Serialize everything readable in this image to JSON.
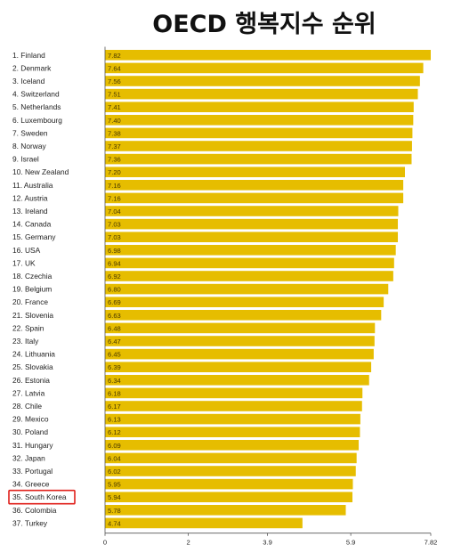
{
  "chart_data": {
    "type": "bar",
    "orientation": "horizontal",
    "title": "OECD 행복지수 순위",
    "categories": [
      "1. Finland",
      "2. Denmark",
      "3. Iceland",
      "4. Switzerland",
      "5. Netherlands",
      "6. Luxembourg",
      "7. Sweden",
      "8. Norway",
      "9. Israel",
      "10. New Zealand",
      "11. Australia",
      "12. Austria",
      "13. Ireland",
      "14. Canada",
      "15. Germany",
      "16. USA",
      "17. UK",
      "18. Czechia",
      "19. Belgium",
      "20. France",
      "21. Slovenia",
      "22. Spain",
      "23. Italy",
      "24. Lithuania",
      "25. Slovakia",
      "26. Estonia",
      "27. Latvia",
      "28. Chile",
      "29. Mexico",
      "30. Poland",
      "31. Hungary",
      "32. Japan",
      "33. Portugal",
      "34. Greece",
      "35. South Korea",
      "36. Colombia",
      "37. Turkey"
    ],
    "values": [
      7.82,
      7.64,
      7.56,
      7.51,
      7.41,
      7.4,
      7.38,
      7.37,
      7.36,
      7.2,
      7.16,
      7.16,
      7.04,
      7.03,
      7.03,
      6.98,
      6.94,
      6.92,
      6.8,
      6.69,
      6.63,
      6.48,
      6.47,
      6.45,
      6.39,
      6.34,
      6.18,
      6.17,
      6.13,
      6.12,
      6.09,
      6.04,
      6.02,
      5.95,
      5.94,
      5.78,
      4.74
    ],
    "value_labels": [
      "7.82",
      "7.64",
      "7.56",
      "7.51",
      "7.41",
      "7.40",
      "7.38",
      "7.37",
      "7.36",
      "7.20",
      "7.16",
      "7.16",
      "7.04",
      "7.03",
      "7.03",
      "6.98",
      "6.94",
      "6.92",
      "6.80",
      "6.69",
      "6.63",
      "6.48",
      "6.47",
      "6.45",
      "6.39",
      "6.34",
      "6.18",
      "6.17",
      "6.13",
      "6.12",
      "6.09",
      "6.04",
      "6.02",
      "5.95",
      "5.94",
      "5.78",
      "4.74"
    ],
    "x_ticks": [
      {
        "value": 0,
        "label": "0"
      },
      {
        "value": 2,
        "label": "2"
      },
      {
        "value": 3.9,
        "label": "3.9"
      },
      {
        "value": 5.9,
        "label": "5.9"
      },
      {
        "value": 7.82,
        "label": "7.82"
      }
    ],
    "xlim": [
      0,
      7.82
    ],
    "highlighted_category": "35. South Korea",
    "grid": false,
    "xlabel": "",
    "ylabel": ""
  },
  "colors": {
    "bar": "#e6bd00",
    "highlight_box": "#e0201b",
    "axis": "#555555"
  }
}
